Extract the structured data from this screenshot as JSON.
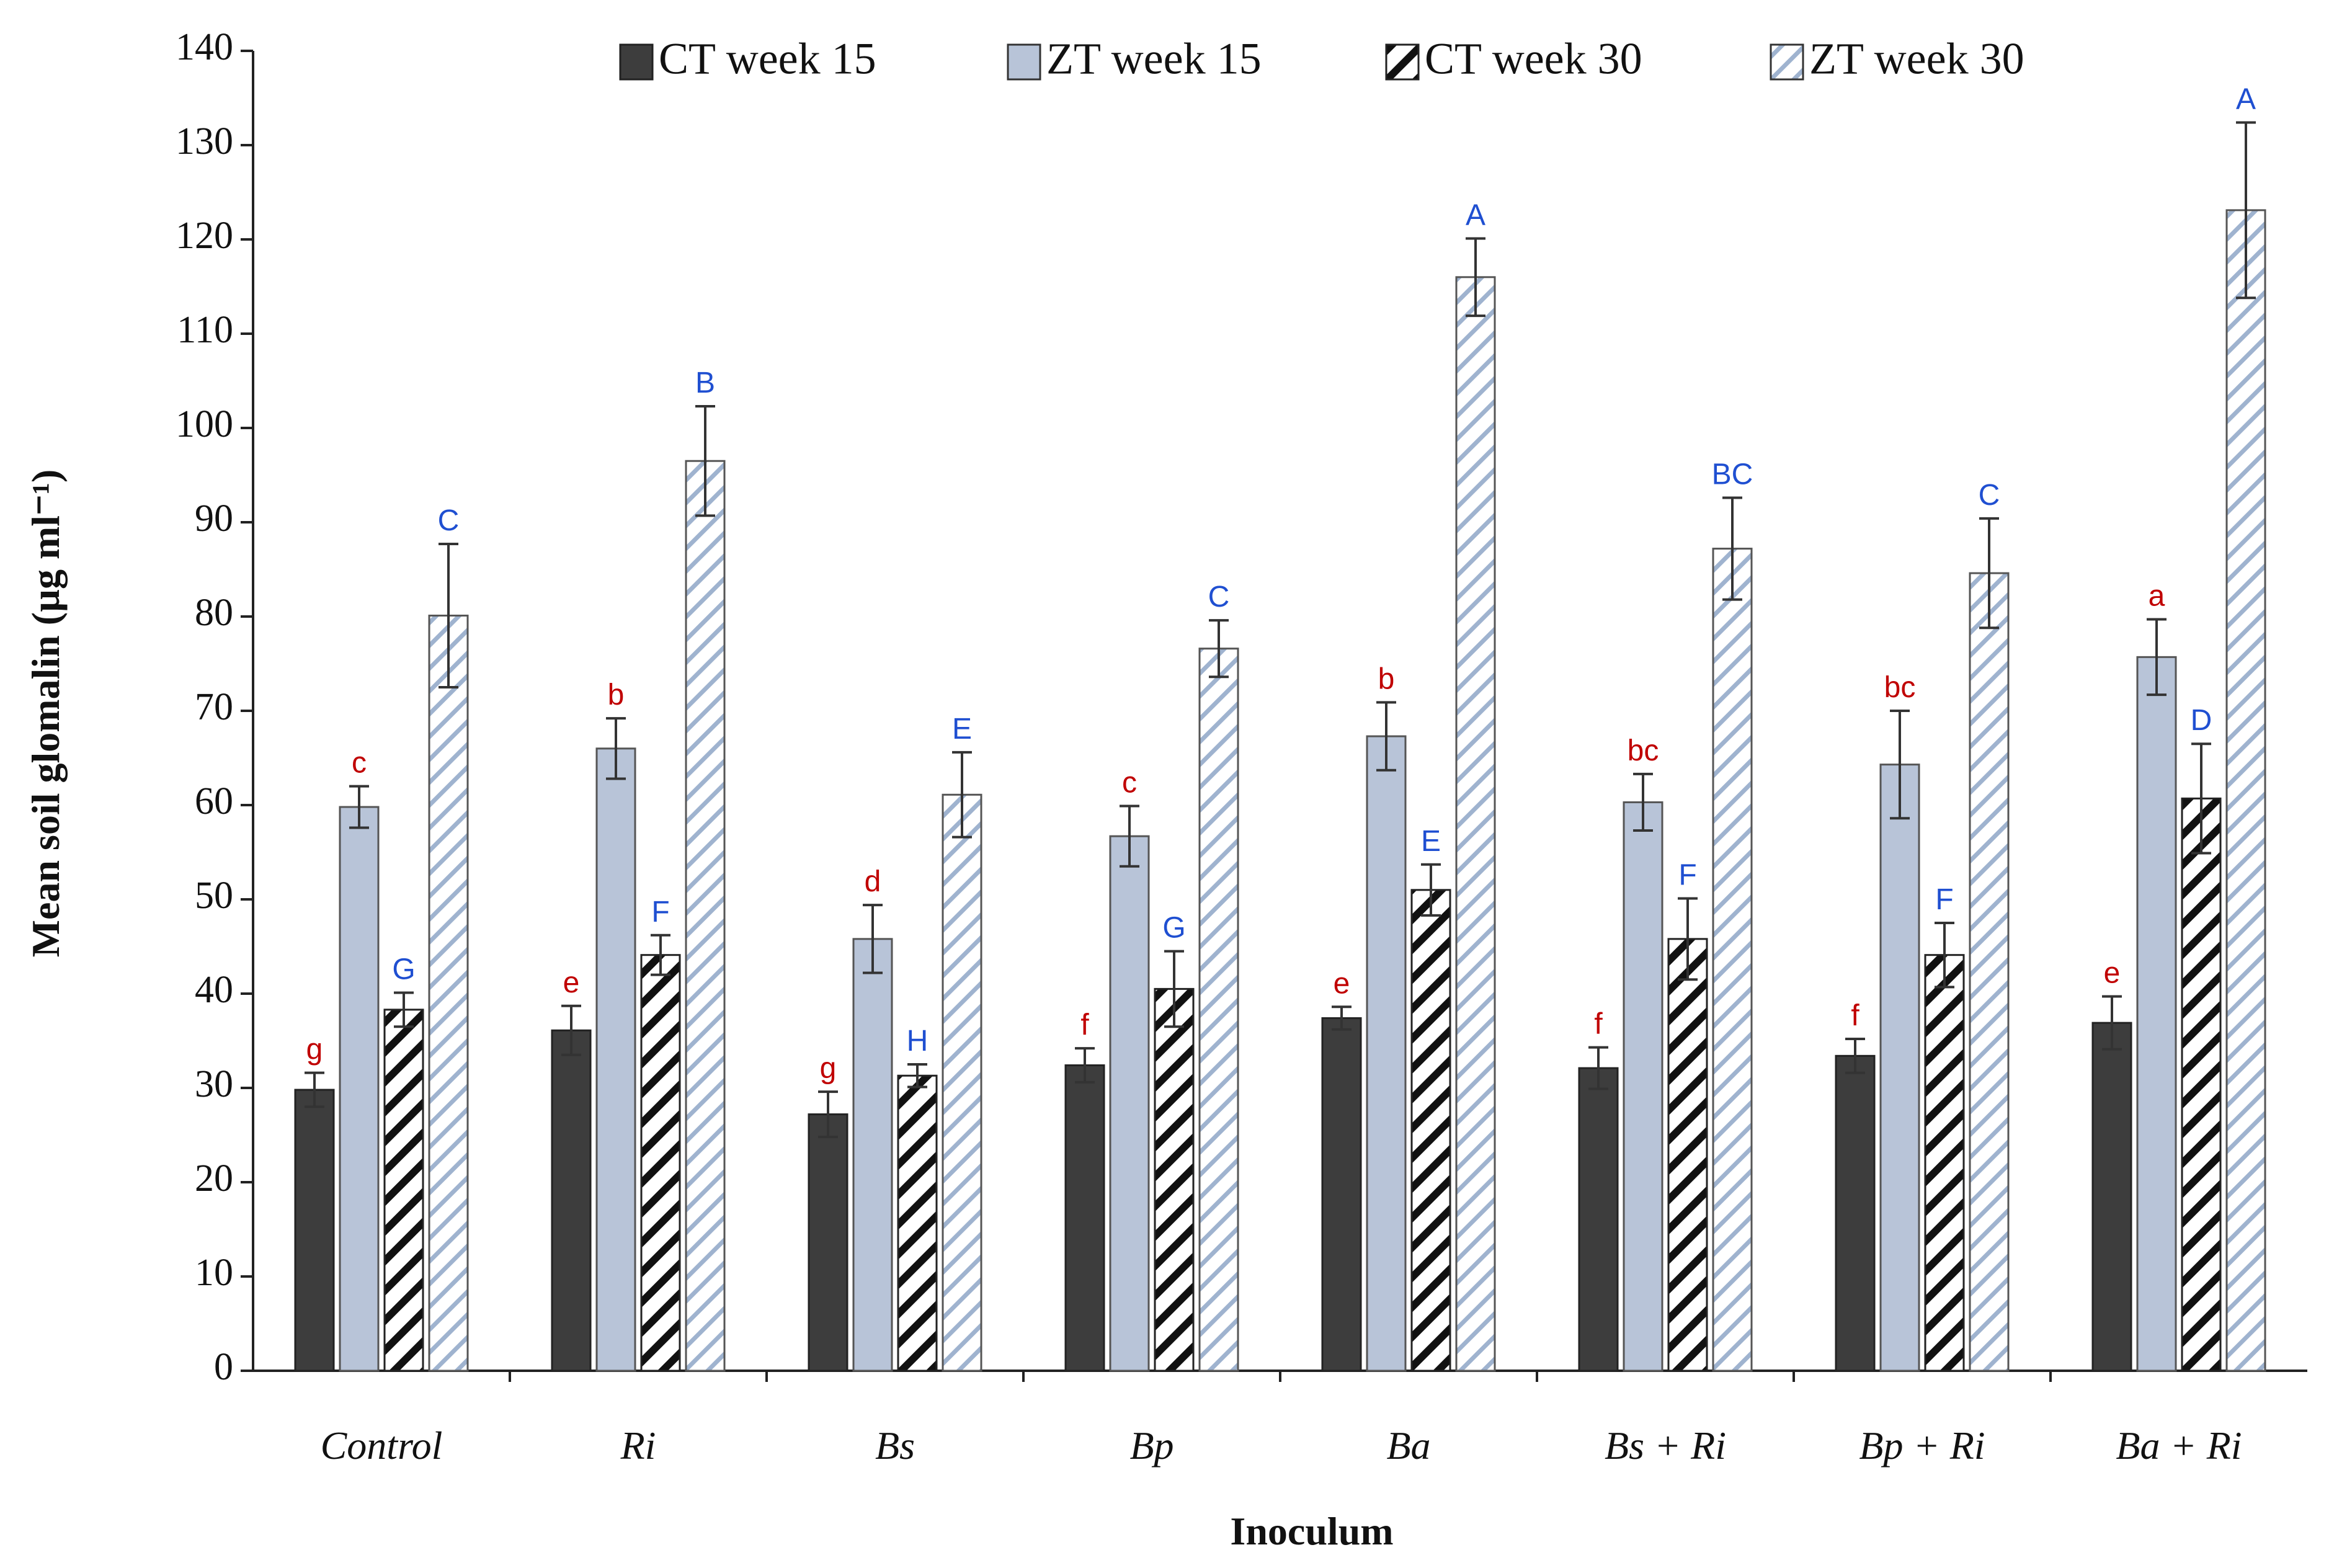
{
  "chart_data": {
    "type": "bar",
    "title": "",
    "xlabel": "Inoculum",
    "ylabel": "Mean soil glomalin (µg ml⁻¹)",
    "ylim": [
      0,
      140
    ],
    "ytick_step": 10,
    "grid": false,
    "legend_position": "top",
    "categories": [
      "Control",
      "Ri",
      "Bs",
      "Bp",
      "Ba",
      "Bs + Ri",
      "Bp + Ri",
      "Ba + Ri"
    ],
    "series": [
      {
        "name": "CT week 15",
        "pattern": "solid-dark",
        "values": [
          29.8,
          36.1,
          27.2,
          32.4,
          37.4,
          32.1,
          33.4,
          36.9
        ],
        "errors": [
          1.8,
          2.6,
          2.4,
          1.8,
          1.2,
          2.2,
          1.8,
          2.8
        ],
        "labels": [
          "g",
          "e",
          "g",
          "f",
          "e",
          "f",
          "f",
          "e"
        ]
      },
      {
        "name": "ZT week 15",
        "pattern": "solid-light",
        "values": [
          59.8,
          66.0,
          45.8,
          56.7,
          67.3,
          60.3,
          64.3,
          75.7
        ],
        "errors": [
          2.2,
          3.2,
          3.6,
          3.2,
          3.6,
          3.0,
          5.7,
          4.0
        ],
        "labels": [
          "c",
          "b",
          "d",
          "c",
          "b",
          "bc",
          "bc",
          "a"
        ]
      },
      {
        "name": "CT week 30",
        "pattern": "hatch-dark",
        "values": [
          38.3,
          44.1,
          31.3,
          40.5,
          51.0,
          45.8,
          44.1,
          60.7
        ],
        "errors": [
          1.8,
          2.1,
          1.2,
          4.0,
          2.7,
          4.3,
          3.4,
          5.8
        ],
        "labels": [
          "G",
          "F",
          "H",
          "G",
          "E",
          "F",
          "F",
          "D"
        ]
      },
      {
        "name": "ZT week 30",
        "pattern": "hatch-light",
        "values": [
          80.1,
          96.5,
          61.1,
          76.6,
          116.0,
          87.2,
          84.6,
          123.1
        ],
        "errors": [
          7.6,
          5.8,
          4.5,
          3.0,
          4.1,
          5.4,
          5.8,
          9.3
        ],
        "labels": [
          "C",
          "B",
          "E",
          "C",
          "A",
          "BC",
          "C",
          "A"
        ]
      }
    ]
  },
  "colors": {
    "ct15": "#3d3d3d",
    "zt15": "#b8c4d8",
    "ct30_hatch": "#111111",
    "zt30_hatch": "#9fb3cf",
    "label_lower": "#c00000",
    "label_upper": "#1f4fd1"
  }
}
